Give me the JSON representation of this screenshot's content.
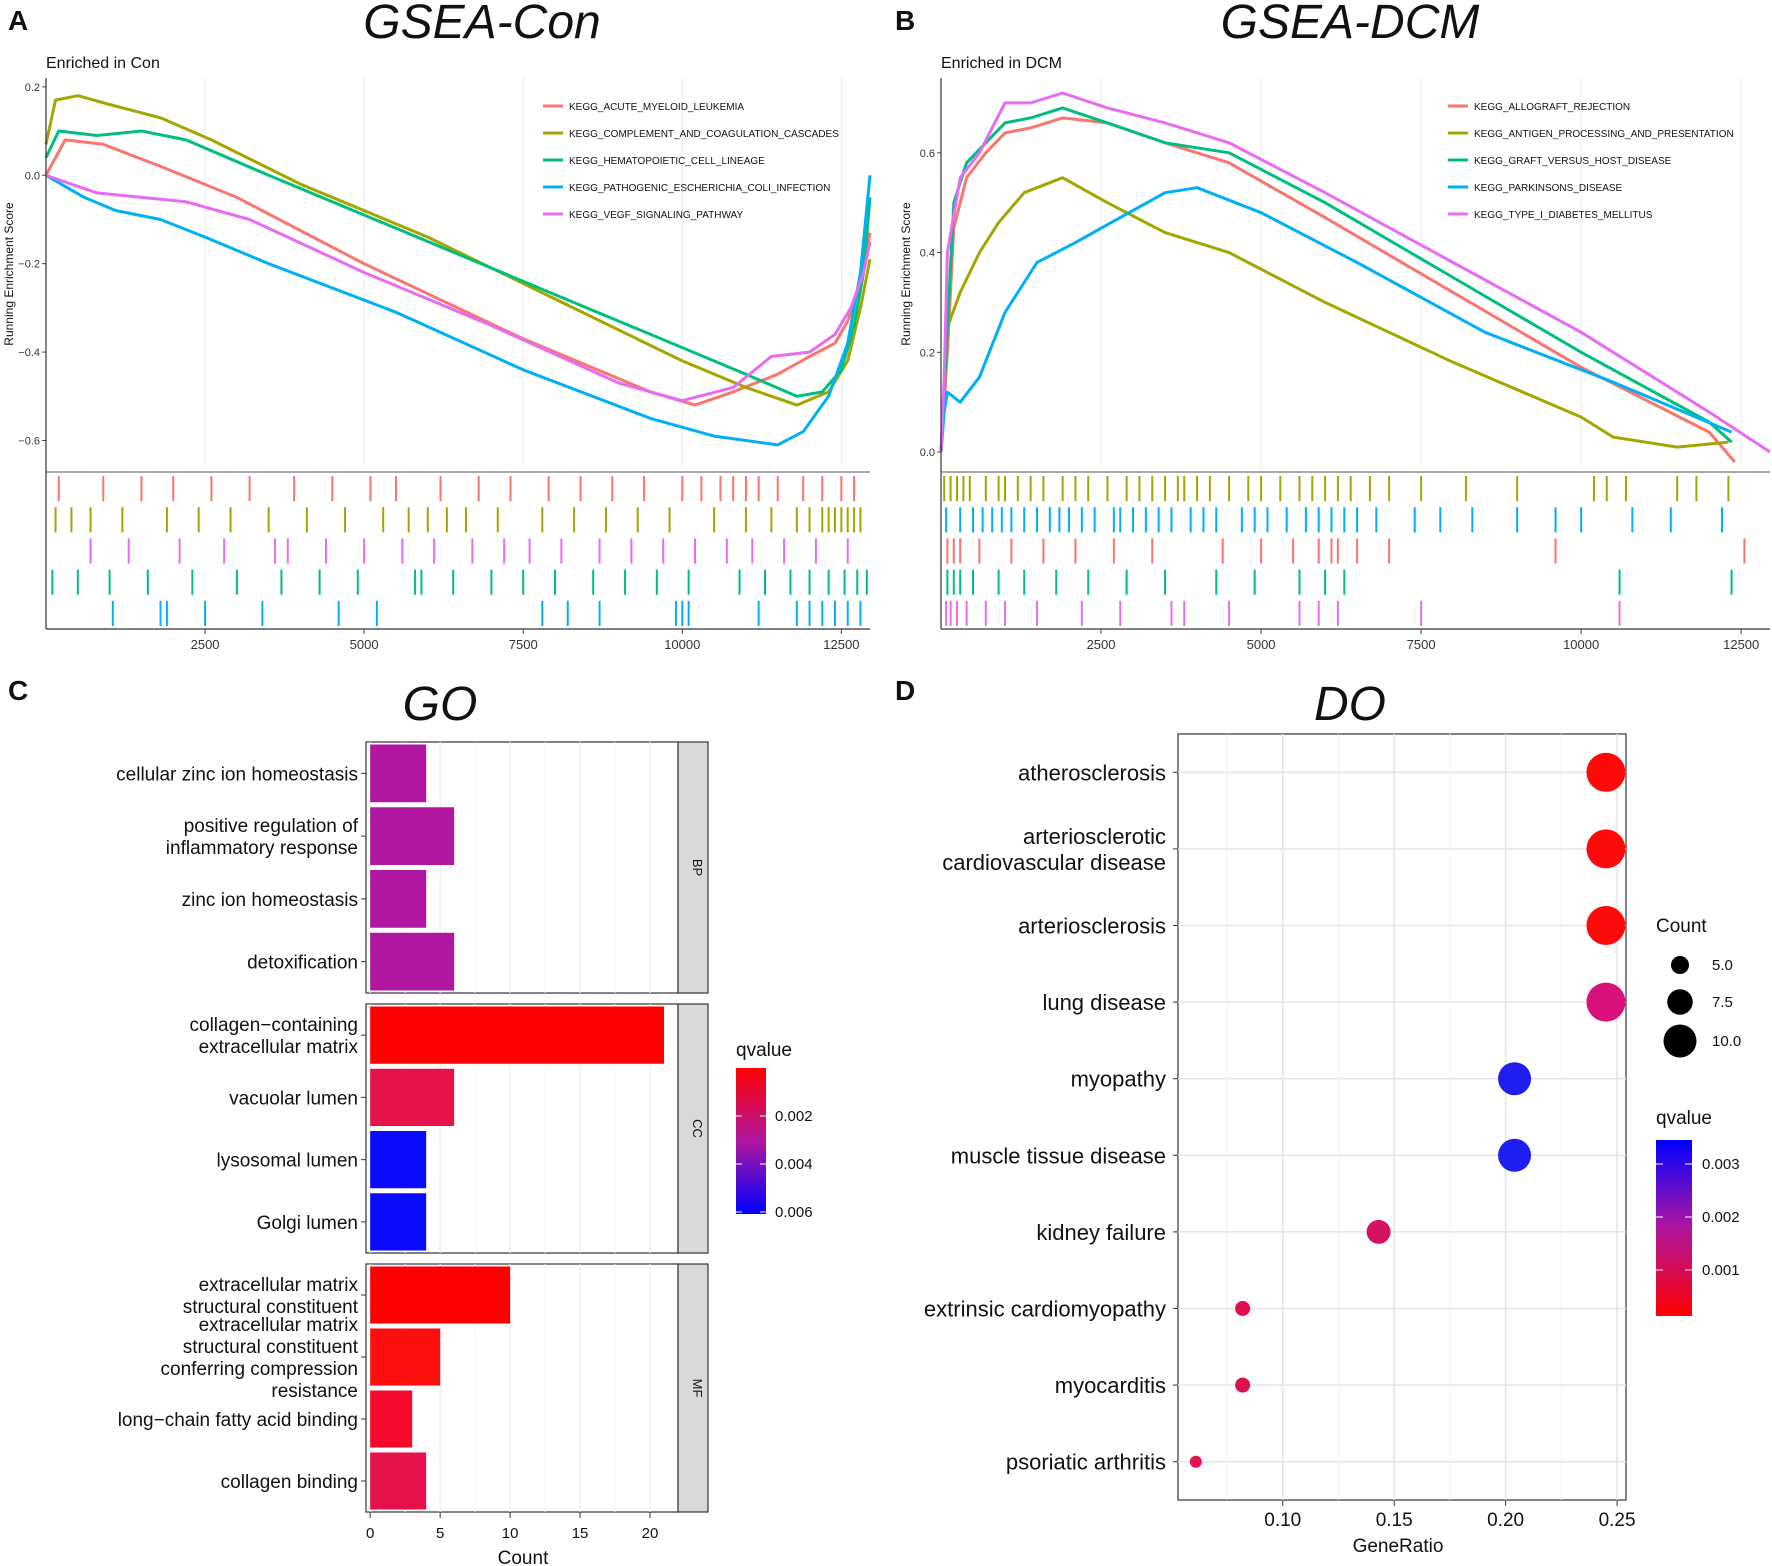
{
  "panel_letters": [
    "A",
    "B",
    "C",
    "D"
  ],
  "chart_data": [
    {
      "id": "A",
      "type": "line",
      "title": "GSEA-Con",
      "subtitle": "Enriched in Con",
      "ylabel": "Running Enrichment Score",
      "xlim": [
        0,
        12950
      ],
      "ylim": [
        -0.66,
        0.22
      ],
      "xticks": [
        2500,
        5000,
        7500,
        10000,
        12500
      ],
      "yticks": [
        -0.6,
        -0.4,
        -0.2,
        0.0,
        0.2
      ],
      "ytick_labels": [
        "−0.6",
        "−0.4",
        "−0.2",
        "0.0",
        "0.2"
      ],
      "series": [
        {
          "name": "KEGG_ACUTE_MYELOID_LEUKEMIA",
          "color": "#F8766D",
          "x": [
            0,
            300,
            900,
            1800,
            3000,
            5000,
            7500,
            9500,
            10200,
            10800,
            11500,
            12000,
            12400,
            12600,
            12800,
            12950
          ],
          "y": [
            0.0,
            0.08,
            0.07,
            0.02,
            -0.05,
            -0.2,
            -0.37,
            -0.49,
            -0.52,
            -0.49,
            -0.45,
            -0.41,
            -0.38,
            -0.33,
            -0.25,
            -0.13
          ]
        },
        {
          "name": "KEGG_COMPLEMENT_AND_COAGULATION_CASCADES",
          "color": "#A3A500",
          "x": [
            0,
            150,
            500,
            1000,
            1800,
            2600,
            4000,
            6000,
            8000,
            10000,
            11000,
            11800,
            12300,
            12600,
            12800,
            12950
          ],
          "y": [
            0.07,
            0.17,
            0.18,
            0.16,
            0.13,
            0.08,
            -0.02,
            -0.14,
            -0.28,
            -0.42,
            -0.48,
            -0.52,
            -0.49,
            -0.42,
            -0.3,
            -0.19
          ]
        },
        {
          "name": "KEGG_HEMATOPOIETIC_CELL_LINEAGE",
          "color": "#00BF7D",
          "x": [
            0,
            200,
            800,
            1500,
            2200,
            3500,
            5500,
            8000,
            10000,
            11000,
            11800,
            12200,
            12500,
            12700,
            12850,
            12950
          ],
          "y": [
            0.04,
            0.1,
            0.09,
            0.1,
            0.08,
            0.0,
            -0.12,
            -0.27,
            -0.39,
            -0.45,
            -0.5,
            -0.49,
            -0.44,
            -0.34,
            -0.22,
            -0.05
          ]
        },
        {
          "name": "KEGG_PATHOGENIC_ESCHERICHIA_COLI_INFECTION",
          "color": "#00B0F6",
          "x": [
            0,
            600,
            1100,
            1800,
            2500,
            3500,
            5500,
            7500,
            9500,
            10500,
            11500,
            11900,
            12300,
            12600,
            12800,
            12950
          ],
          "y": [
            0.0,
            -0.05,
            -0.08,
            -0.1,
            -0.14,
            -0.2,
            -0.31,
            -0.44,
            -0.55,
            -0.59,
            -0.61,
            -0.58,
            -0.5,
            -0.38,
            -0.22,
            0.0
          ]
        },
        {
          "name": "KEGG_VEGF_SIGNALING_PATHWAY",
          "color": "#E76BF3",
          "x": [
            0,
            800,
            1500,
            2200,
            3200,
            5000,
            7000,
            9000,
            10000,
            10800,
            11400,
            12000,
            12400,
            12650,
            12850,
            12950
          ],
          "y": [
            0.0,
            -0.04,
            -0.05,
            -0.06,
            -0.1,
            -0.22,
            -0.34,
            -0.47,
            -0.51,
            -0.48,
            -0.41,
            -0.4,
            -0.36,
            -0.3,
            -0.22,
            -0.15
          ]
        }
      ],
      "rug_order": [
        "KEGG_ACUTE_MYELOID_LEUKEMIA",
        "KEGG_COMPLEMENT_AND_COAGULATION_CASCADES",
        "KEGG_VEGF_SIGNALING_PATHWAY",
        "KEGG_HEMATOPOIETIC_CELL_LINEAGE",
        "KEGG_PATHOGENIC_ESCHERICHIA_COLI_INFECTION"
      ],
      "hits": [
        [
          200,
          900,
          1500,
          2000,
          2600,
          3200,
          3900,
          4500,
          5100,
          5500,
          6200,
          6800,
          7300,
          7900,
          8400,
          8900,
          9400,
          10000,
          10300,
          10600,
          10800,
          11000,
          11200,
          11500,
          11900,
          12200,
          12500,
          12700
        ],
        [
          150,
          400,
          700,
          1200,
          1900,
          2400,
          2900,
          3500,
          4100,
          4700,
          5300,
          5700,
          6000,
          6300,
          6600,
          7100,
          7800,
          8300,
          8800,
          9300,
          9800,
          10500,
          11000,
          11400,
          11800,
          12000,
          12200,
          12300,
          12400,
          12500,
          12600,
          12700,
          12800
        ],
        [
          700,
          1300,
          2100,
          2800,
          3600,
          3800,
          4400,
          5000,
          5600,
          6100,
          6700,
          7200,
          7600,
          8100,
          8700,
          9200,
          9700,
          10200,
          10700,
          11100,
          11600,
          12100,
          12600
        ],
        [
          100,
          500,
          1000,
          1600,
          2300,
          3000,
          3700,
          4300,
          4900,
          5800,
          5900,
          6400,
          7000,
          7500,
          8000,
          8600,
          9100,
          9600,
          10100,
          10900,
          11300,
          11700,
          12000,
          12300,
          12550,
          12750,
          12900
        ],
        [
          1050,
          1800,
          1900,
          2500,
          3400,
          4600,
          5200,
          7800,
          8200,
          8700,
          9900,
          10000,
          10100,
          11200,
          11800,
          12000,
          12200,
          12400,
          12600,
          12800
        ]
      ]
    },
    {
      "id": "B",
      "type": "line",
      "title": "GSEA-DCM",
      "subtitle": "Enriched in DCM",
      "ylabel": "Running Enrichment Score",
      "xlim": [
        0,
        12950
      ],
      "ylim": [
        -0.03,
        0.75
      ],
      "xticks": [
        2500,
        5000,
        7500,
        10000,
        12500
      ],
      "yticks": [
        0.0,
        0.2,
        0.4,
        0.6
      ],
      "ytick_labels": [
        "0.0",
        "0.2",
        "0.4",
        "0.6"
      ],
      "series": [
        {
          "name": "KEGG_ALLOGRAFT_REJECTION",
          "color": "#F8766D",
          "x": [
            0,
            100,
            200,
            400,
            700,
            1000,
            1400,
            1900,
            2600,
            3500,
            4500,
            6000,
            8000,
            10000,
            12000,
            12400
          ],
          "y": [
            0.0,
            0.2,
            0.45,
            0.55,
            0.6,
            0.64,
            0.65,
            0.67,
            0.66,
            0.62,
            0.58,
            0.47,
            0.32,
            0.17,
            0.04,
            -0.02
          ]
        },
        {
          "name": "KEGG_ANTIGEN_PROCESSING_AND_PRESENTATION",
          "color": "#A3A500",
          "x": [
            0,
            100,
            300,
            600,
            900,
            1300,
            1900,
            2600,
            3500,
            4500,
            6000,
            8000,
            10000,
            10500,
            11500,
            12300
          ],
          "y": [
            0.0,
            0.25,
            0.32,
            0.4,
            0.46,
            0.52,
            0.55,
            0.5,
            0.44,
            0.4,
            0.3,
            0.18,
            0.07,
            0.03,
            0.01,
            0.02
          ]
        },
        {
          "name": "KEGG_GRAFT_VERSUS_HOST_DISEASE",
          "color": "#00BF7D",
          "x": [
            0,
            100,
            200,
            400,
            700,
            1000,
            1400,
            1900,
            2600,
            3500,
            4500,
            6000,
            8000,
            10000,
            12000,
            12350
          ],
          "y": [
            0.0,
            0.25,
            0.5,
            0.58,
            0.62,
            0.66,
            0.67,
            0.69,
            0.66,
            0.62,
            0.6,
            0.5,
            0.35,
            0.2,
            0.06,
            0.02
          ]
        },
        {
          "name": "KEGG_PARKINSONS_DISEASE",
          "color": "#00B0F6",
          "x": [
            0,
            50,
            100,
            300,
            600,
            1000,
            1500,
            2100,
            2800,
            3500,
            4000,
            5000,
            6500,
            8500,
            10500,
            12350
          ],
          "y": [
            0.0,
            0.08,
            0.12,
            0.1,
            0.15,
            0.28,
            0.38,
            0.42,
            0.47,
            0.52,
            0.53,
            0.48,
            0.38,
            0.24,
            0.14,
            0.04
          ]
        },
        {
          "name": "KEGG_TYPE_I_DIABETES_MELLITUS",
          "color": "#E76BF3",
          "x": [
            0,
            50,
            100,
            300,
            600,
            1000,
            1400,
            1900,
            2600,
            3500,
            4500,
            6000,
            8000,
            10000,
            12000,
            12950
          ],
          "y": [
            0.0,
            0.15,
            0.4,
            0.55,
            0.6,
            0.7,
            0.7,
            0.72,
            0.69,
            0.66,
            0.62,
            0.52,
            0.38,
            0.24,
            0.08,
            0.0
          ]
        }
      ],
      "rug_order": [
        "KEGG_ANTIGEN_PROCESSING_AND_PRESENTATION",
        "KEGG_PARKINSONS_DISEASE",
        "KEGG_ALLOGRAFT_REJECTION",
        "KEGG_GRAFT_VERSUS_HOST_DISEASE",
        "KEGG_TYPE_I_DIABETES_MELLITUS"
      ],
      "hits": [
        [
          50,
          150,
          250,
          350,
          450,
          700,
          900,
          1000,
          1200,
          1400,
          1600,
          1900,
          2100,
          2300,
          2600,
          2900,
          3100,
          3300,
          3500,
          3700,
          3800,
          4000,
          4200,
          4500,
          4800,
          5000,
          5300,
          5600,
          5800,
          6000,
          6200,
          6400,
          6700,
          7000,
          7500,
          8200,
          9000,
          10200,
          10400,
          10700,
          11500,
          11800,
          12300
        ],
        [
          80,
          300,
          500,
          650,
          800,
          950,
          1100,
          1300,
          1500,
          1700,
          1850,
          2000,
          2200,
          2400,
          2700,
          2800,
          3000,
          3200,
          3400,
          3600,
          3900,
          4100,
          4300,
          4700,
          4900,
          5100,
          5400,
          5700,
          5900,
          6100,
          6300,
          6500,
          6800,
          7400,
          7800,
          8300,
          9000,
          9600,
          10000,
          10800,
          11400,
          12200
        ],
        [
          100,
          200,
          300,
          600,
          1100,
          1600,
          2100,
          2700,
          3300,
          4400,
          5000,
          5500,
          5900,
          6100,
          6200,
          6500,
          7000,
          9600,
          12550
        ],
        [
          100,
          200,
          300,
          500,
          900,
          1300,
          1800,
          2300,
          2900,
          3500,
          4300,
          4900,
          5600,
          6000,
          6300,
          10600,
          12350
        ],
        [
          80,
          150,
          250,
          400,
          700,
          1000,
          1500,
          2200,
          2800,
          3600,
          3800,
          4500,
          5600,
          5900,
          6200,
          7500,
          10600
        ]
      ]
    },
    {
      "id": "C",
      "type": "bar",
      "orientation": "horizontal",
      "title": "GO",
      "xlabel": "Count",
      "xlim": [
        -0.3,
        22
      ],
      "xticks": [
        0,
        5,
        10,
        15,
        20
      ],
      "facets": [
        {
          "name": "BP",
          "categories": [
            {
              "label": [
                "cellular zinc ion homeostasis"
              ],
              "value": 4,
              "color": "#B0169F"
            },
            {
              "label": [
                "positive regulation of",
                "inflammatory response"
              ],
              "value": 6,
              "color": "#B0169F"
            },
            {
              "label": [
                "zinc ion homeostasis"
              ],
              "value": 4,
              "color": "#B0169F"
            },
            {
              "label": [
                "detoxification"
              ],
              "value": 6,
              "color": "#B0169F"
            }
          ]
        },
        {
          "name": "CC",
          "categories": [
            {
              "label": [
                "collagen−containing",
                "extracellular matrix"
              ],
              "value": 21,
              "color": "#FF0000"
            },
            {
              "label": [
                "vacuolar lumen"
              ],
              "value": 6,
              "color": "#E6124A"
            },
            {
              "label": [
                "lysosomal lumen"
              ],
              "value": 4,
              "color": "#0A0AFF"
            },
            {
              "label": [
                "Golgi lumen"
              ],
              "value": 4,
              "color": "#0A0AFF"
            }
          ]
        },
        {
          "name": "MF",
          "categories": [
            {
              "label": [
                "extracellular matrix",
                "structural constituent"
              ],
              "value": 10,
              "color": "#FF0000"
            },
            {
              "label": [
                "extracellular matrix",
                "structural constituent",
                "conferring compression",
                "resistance"
              ],
              "value": 5,
              "color": "#FF0E0E"
            },
            {
              "label": [
                "long−chain fatty acid binding"
              ],
              "value": 3,
              "color": "#F50A2C"
            },
            {
              "label": [
                "collagen binding"
              ],
              "value": 4,
              "color": "#E6124A"
            }
          ]
        }
      ],
      "legend": {
        "title": "qvalue",
        "ticks": [
          "0.002",
          "0.004",
          "0.006"
        ],
        "colors": [
          "#FF0000",
          "#0000FF"
        ]
      }
    },
    {
      "id": "D",
      "type": "scatter",
      "title": "DO",
      "xlabel": "GeneRatio",
      "xlim": [
        0.053,
        0.254
      ],
      "xticks": [
        0.1,
        0.15,
        0.2,
        0.25
      ],
      "xtick_labels": [
        "0.10",
        "0.15",
        "0.20",
        "0.25"
      ],
      "points": [
        {
          "label": [
            "atherosclerosis"
          ],
          "x": 0.245,
          "count": 12,
          "color": "#FF0A0A"
        },
        {
          "label": [
            "arteriosclerotic",
            "cardiovascular disease"
          ],
          "x": 0.245,
          "count": 12,
          "color": "#FF0A0A"
        },
        {
          "label": [
            "arteriosclerosis"
          ],
          "x": 0.245,
          "count": 12,
          "color": "#FF0A0A"
        },
        {
          "label": [
            "lung disease"
          ],
          "x": 0.245,
          "count": 12,
          "color": "#D9107A"
        },
        {
          "label": [
            "myopathy"
          ],
          "x": 0.204,
          "count": 10,
          "color": "#1E1EF0"
        },
        {
          "label": [
            "muscle tissue disease"
          ],
          "x": 0.204,
          "count": 10,
          "color": "#1E1EF0"
        },
        {
          "label": [
            "kidney failure"
          ],
          "x": 0.143,
          "count": 7,
          "color": "#D51262"
        },
        {
          "label": [
            "extrinsic cardiomyopathy"
          ],
          "x": 0.082,
          "count": 4,
          "color": "#E0104E"
        },
        {
          "label": [
            "myocarditis"
          ],
          "x": 0.082,
          "count": 4,
          "color": "#E0104E"
        },
        {
          "label": [
            "psoriatic arthritis"
          ],
          "x": 0.061,
          "count": 3,
          "color": "#E8104A"
        }
      ],
      "size_legend": {
        "title": "Count",
        "entries": [
          {
            "label": "5.0",
            "count": 5
          },
          {
            "label": "7.5",
            "count": 7.5
          },
          {
            "label": "10.0",
            "count": 10
          }
        ]
      },
      "color_legend": {
        "title": "qvalue",
        "ticks": [
          "0.003",
          "0.002",
          "0.001"
        ],
        "colors": [
          "#0000FF",
          "#FF0000"
        ]
      }
    }
  ]
}
